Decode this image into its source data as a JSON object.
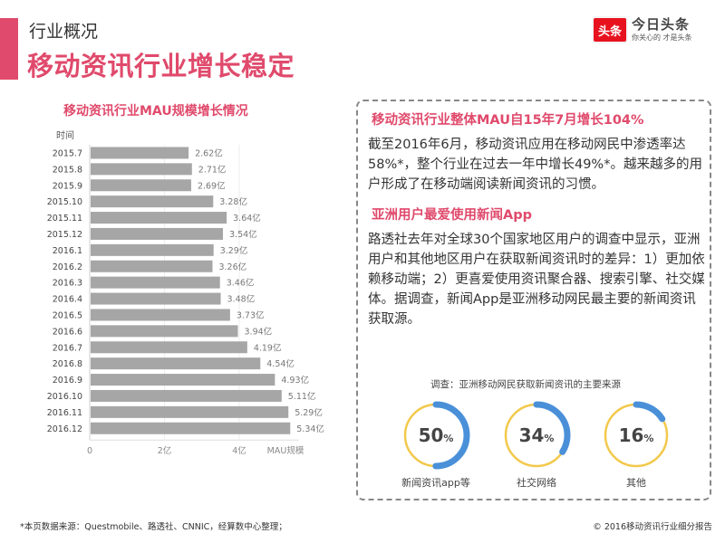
{
  "header": {
    "section_label": "行业概况",
    "title": "移动资讯行业增长稳定",
    "accent_color": "#e04a6c"
  },
  "logo": {
    "badge": "头条",
    "name": "今日头条",
    "slogan": "你关心的 才是头条",
    "badge_color": "#e8121f"
  },
  "chart_data": {
    "type": "bar",
    "orientation": "horizontal",
    "title": "移动资讯行业MAU规模增长情况",
    "ylabel": "时间",
    "xlabel": "MAU规模",
    "xlim": [
      0,
      5.6
    ],
    "xticks": [
      0,
      2,
      4
    ],
    "xtick_labels": [
      "0",
      "2亿",
      "4亿"
    ],
    "grid": true,
    "bar_color": "#a6a6a6",
    "unit_suffix": "亿",
    "categories": [
      "2015.7",
      "2015.8",
      "2015.9",
      "2015.10",
      "2015.11",
      "2015.12",
      "2016.1",
      "2016.2",
      "2016.3",
      "2016.4",
      "2016.5",
      "2016.6",
      "2016.7",
      "2016.8",
      "2016.9",
      "2016.10",
      "2016.11",
      "2016.12"
    ],
    "values": [
      2.62,
      2.71,
      2.69,
      3.28,
      3.64,
      3.54,
      3.29,
      3.26,
      3.46,
      3.48,
      3.73,
      3.94,
      4.19,
      4.54,
      4.93,
      5.11,
      5.29,
      5.34
    ],
    "value_labels": [
      "2.62亿",
      "2.71亿",
      "2.69亿",
      "3.28亿",
      "3.64亿",
      "3.54亿",
      "3.29亿",
      "3.26亿",
      "3.46亿",
      "3.48亿",
      "3.73亿",
      "3.94亿",
      "4.19亿",
      "4.54亿",
      "4.93亿",
      "5.11亿",
      "5.29亿",
      "5.34亿"
    ]
  },
  "panel": {
    "heading1": "移动资讯行业整体MAU自15年7月增长104%",
    "para1": "截至2016年6月，移动资讯应用在移动网民中渗透率达58%*，整个行业在过去一年中增长49%*。越来越多的用户形成了在移动端阅读新闻资讯的习惯。",
    "heading2": "亚洲用户最爱使用新闻App",
    "para2": "路透社去年对全球30个国家地区用户的调查中显示，亚洲用户和其他地区用户在获取新闻资讯时的差异：1）更加依赖移动端；2）更喜爱使用资讯聚合器、搜索引擎、社交媒体。据调查，新闻App是亚洲移动网民最主要的新闻资讯获取源。"
  },
  "survey": {
    "title": "调查：亚洲移动网民获取新闻资讯的主要来源",
    "ring_color": "#f2c94c",
    "fill_color": "#4a90d9",
    "items": [
      {
        "label": "新闻资讯app等",
        "value": "50",
        "percent": 50,
        "unit": "%"
      },
      {
        "label": "社交网络",
        "value": "34",
        "percent": 34,
        "unit": "%"
      },
      {
        "label": "其他",
        "value": "16",
        "percent": 16,
        "unit": "%"
      }
    ]
  },
  "footer": {
    "source": "*本页数据来源：Questmobile、路透社、CNNIC，经算数中心整理；",
    "copyright": "© 2016移动资讯行业细分报告"
  }
}
